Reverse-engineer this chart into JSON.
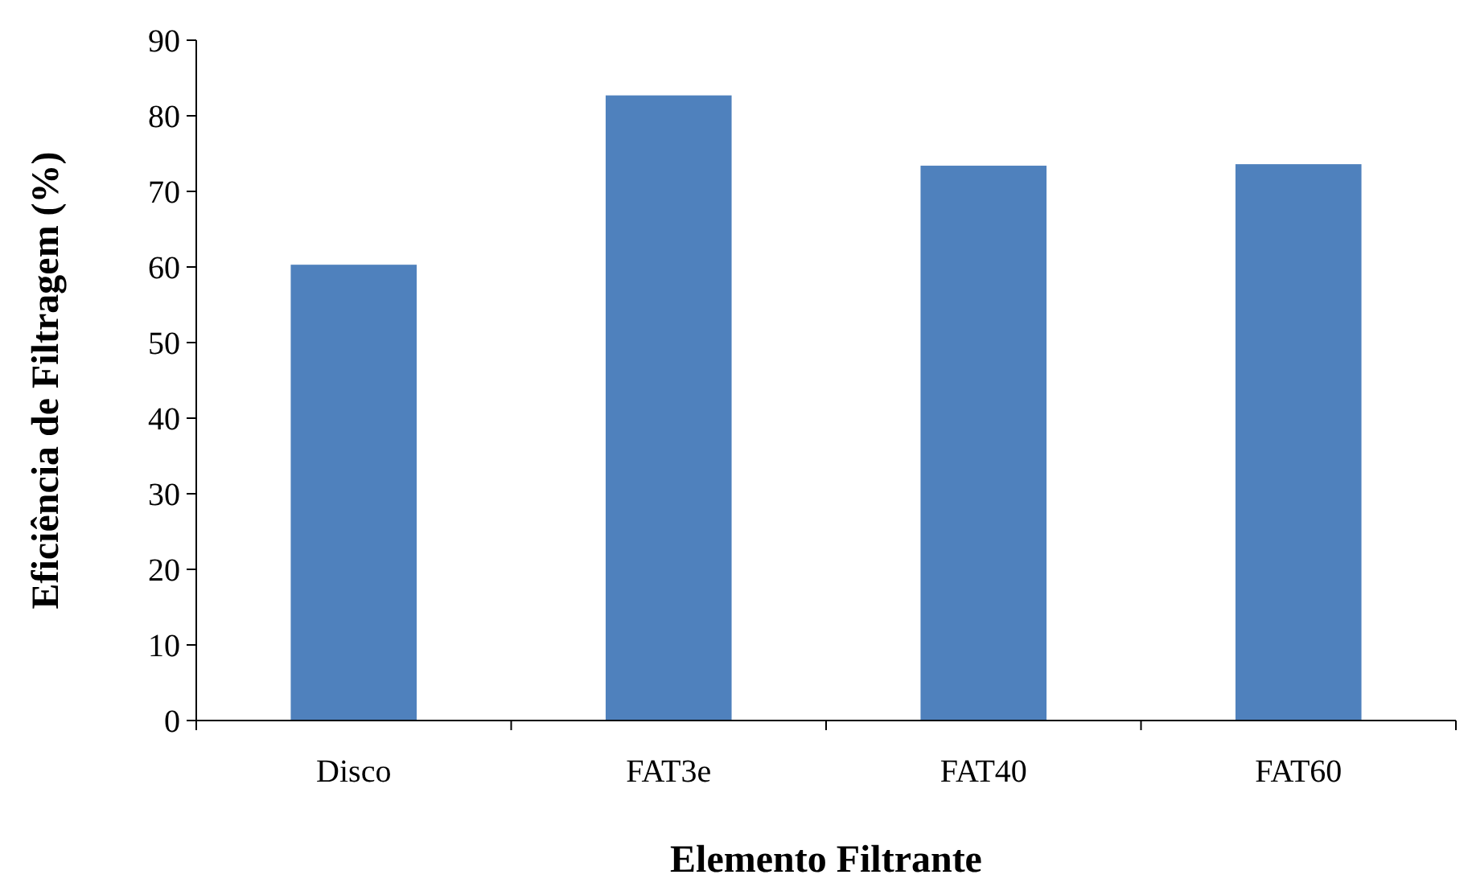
{
  "chart_data": {
    "type": "bar",
    "xlabel": "Elemento Filtrante",
    "ylabel": "Eficiência de Filtragem (%)",
    "categories": [
      "Disco",
      "FAT3e",
      "FAT40",
      "FAT60"
    ],
    "values": [
      60.3,
      82.7,
      73.4,
      73.6
    ],
    "color": "#4f81bd",
    "ylim": [
      0,
      90
    ],
    "yticks": [
      0,
      10,
      20,
      30,
      40,
      50,
      60,
      70,
      80,
      90
    ],
    "grid": false
  }
}
